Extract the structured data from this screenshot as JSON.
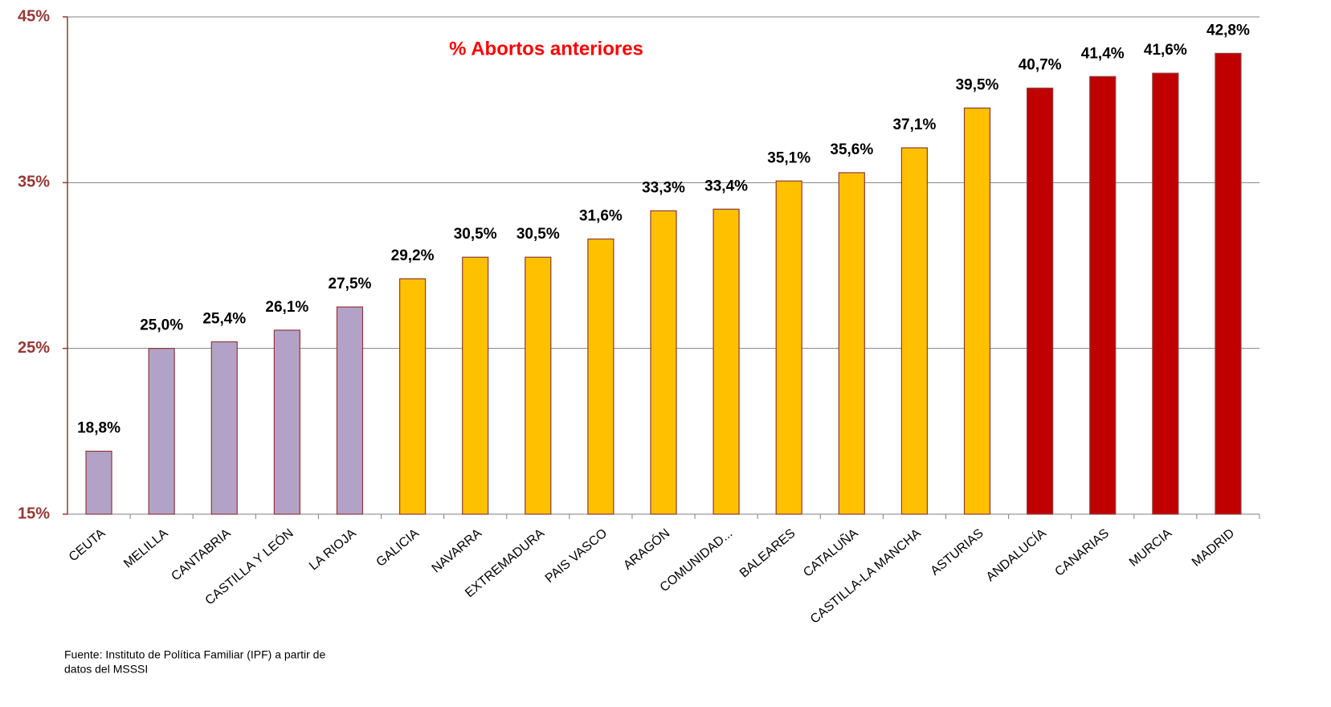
{
  "chart_data": {
    "type": "bar",
    "title": "% Abortos anteriores",
    "categories": [
      "CEUTA",
      "MELILLA",
      "CANTABRIA",
      "CASTILLA Y LEÓN",
      "LA RIOJA",
      "GALICIA",
      "NAVARRA",
      "EXTREMADURA",
      "PAIS VASCO",
      "ARAGÓN",
      "COMUNIDAD...",
      "BALEARES",
      "CATALUÑA",
      "CASTILLA-LA MANCHA",
      "ASTURIAS",
      "ANDALUCÍA",
      "CANARIAS",
      "MURCIA",
      "MADRID"
    ],
    "values": [
      18.8,
      25.0,
      25.4,
      26.1,
      27.5,
      29.2,
      30.5,
      30.5,
      31.6,
      33.3,
      33.4,
      35.1,
      35.6,
      37.1,
      39.5,
      40.7,
      41.4,
      41.6,
      42.8
    ],
    "value_labels": [
      "18,8%",
      "25,0%",
      "25,4%",
      "26,1%",
      "27,5%",
      "29,2%",
      "30,5%",
      "30,5%",
      "31,6%",
      "33,3%",
      "33,4%",
      "35,1%",
      "35,6%",
      "37,1%",
      "39,5%",
      "40,7%",
      "41,4%",
      "41,6%",
      "42,8%"
    ],
    "colors": [
      "#b3a2c7",
      "#b3a2c7",
      "#b3a2c7",
      "#b3a2c7",
      "#b3a2c7",
      "#ffc000",
      "#ffc000",
      "#ffc000",
      "#ffc000",
      "#ffc000",
      "#ffc000",
      "#ffc000",
      "#ffc000",
      "#ffc000",
      "#ffc000",
      "#c00000",
      "#c00000",
      "#c00000",
      "#c00000"
    ],
    "ylim": [
      15,
      45
    ],
    "yticks": [
      {
        "value": 15,
        "label": "15%"
      },
      {
        "value": 25,
        "label": "25%"
      },
      {
        "value": 35,
        "label": "35%"
      },
      {
        "value": 45,
        "label": "45%"
      }
    ],
    "grid": true,
    "source": [
      "Fuente: Instituto de Política Familiar (IPF) a partir de",
      "datos del MSSSI"
    ]
  }
}
